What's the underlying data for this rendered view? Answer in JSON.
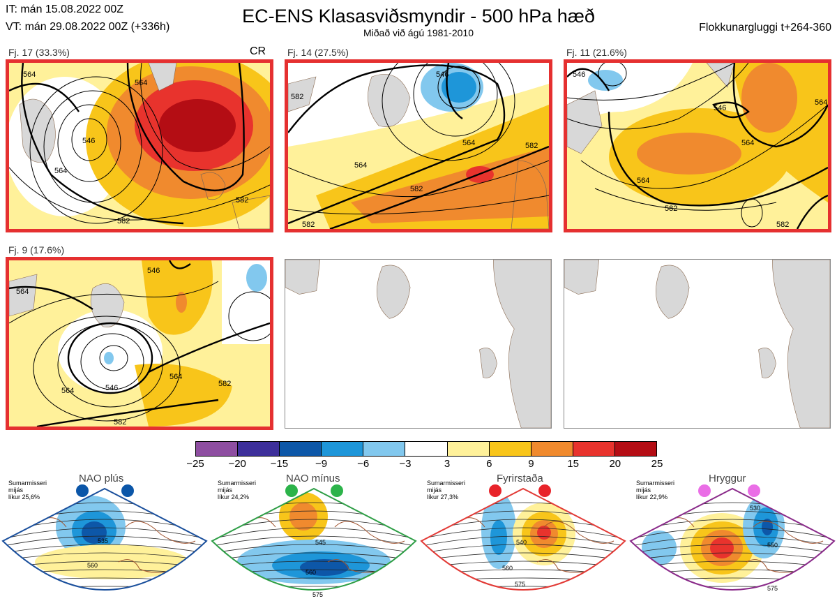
{
  "header": {
    "it": "IT: mán 15.08.2022 00Z",
    "vt": "VT: mán 29.08.2022 00Z  (+336h)",
    "title": "EC-ENS Klasasviðsmyndir - 500 hPa hæð",
    "subtitle": "Miðað við ágú 1981-2010",
    "window": "Flokkunargluggi t+264-360"
  },
  "panels": [
    {
      "label": "Fj. 17 (33.3%)",
      "tag": "CR",
      "contours": [
        "564",
        "546",
        "564",
        "582",
        "582",
        "564"
      ]
    },
    {
      "label": "Fj. 14 (27.5%)",
      "contours": [
        "546",
        "582",
        "564",
        "564",
        "582",
        "582",
        "582"
      ]
    },
    {
      "label": "Fj. 11 (21.6%)",
      "contours": [
        "546",
        "546",
        "564",
        "564",
        "564",
        "582",
        "582"
      ]
    },
    {
      "label": "Fj. 9 (17.6%)",
      "contours": [
        "546",
        "564",
        "564",
        "546",
        "582",
        "582",
        "564"
      ]
    }
  ],
  "colorbar": {
    "colors": [
      "#8e4ea1",
      "#3d2f9a",
      "#0d57a8",
      "#1e96d9",
      "#82c8ee",
      "#ffffff",
      "#fff19a",
      "#f8c51a",
      "#f08a2e",
      "#e8332d",
      "#b40d14"
    ],
    "ticks": [
      "−25",
      "−20",
      "−15",
      "−9",
      "−6",
      "−3",
      "3",
      "6",
      "9",
      "15",
      "20",
      "25"
    ]
  },
  "regimes": [
    {
      "name": "NAO plús",
      "l1": "Sumarmisseri",
      "l2": "mijás",
      "l3": "líkur 25,6%",
      "color": "#1a4f9c",
      "dot": "#0b56a8",
      "contours": [
        "535",
        "560"
      ]
    },
    {
      "name": "NAO mínus",
      "l1": "Sumarmisseri",
      "l2": "mijás",
      "l3": "líkur 24,2%",
      "color": "#2e9e46",
      "dot": "#2cb34a",
      "contours": [
        "545",
        "560",
        "575"
      ]
    },
    {
      "name": "Fyrirstaða",
      "l1": "Sumarmisseri",
      "l2": "mijás",
      "l3": "líkur 27,3%",
      "color": "#e23a36",
      "dot": "#e8232a",
      "contours": [
        "540",
        "560",
        "575"
      ]
    },
    {
      "name": "Hryggur",
      "l1": "Sumarmisseri",
      "l2": "mijás",
      "l3": "líkur 22,9%",
      "color": "#8a2b8a",
      "dot": "#ea6ee6",
      "contours": [
        "530",
        "550",
        "575"
      ]
    }
  ]
}
